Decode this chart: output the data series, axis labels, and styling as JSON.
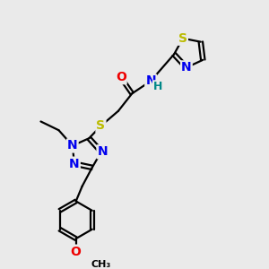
{
  "background_color": "#eaeaea",
  "atom_colors": {
    "C": "#000000",
    "N": "#0000ee",
    "O": "#ee0000",
    "S": "#bbbb00",
    "H": "#008888"
  },
  "bond_color": "#000000",
  "bond_width": 1.6,
  "dbo": 0.08,
  "font_size_atom": 10,
  "font_size_small": 8
}
